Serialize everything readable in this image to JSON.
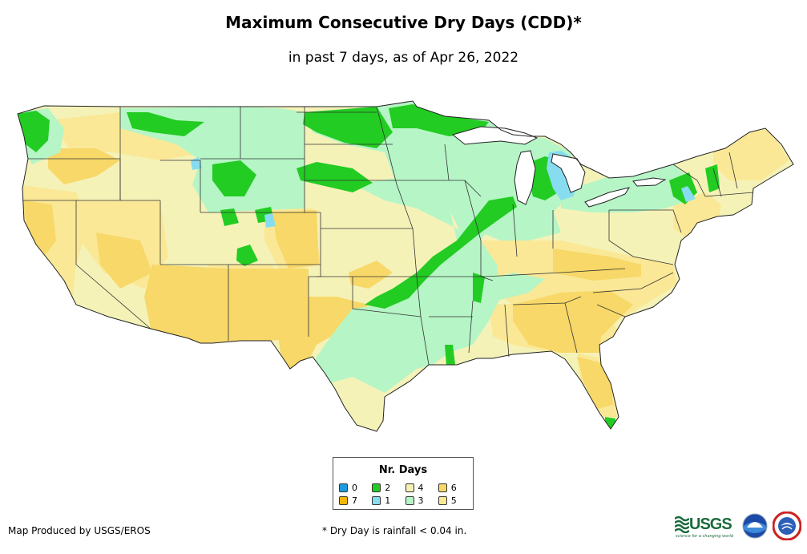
{
  "title": "Maximum Consecutive Dry Days (CDD)*",
  "subtitle": "in past 7 days, as of Apr 26, 2022",
  "legend": {
    "title": "Nr. Days",
    "items": [
      {
        "label": "0",
        "color": "#1e9be0"
      },
      {
        "label": "2",
        "color": "#22cc22"
      },
      {
        "label": "4",
        "color": "#f5f2b8"
      },
      {
        "label": "6",
        "color": "#f7d868"
      },
      {
        "label": "7",
        "color": "#f5b800"
      },
      {
        "label": "1",
        "color": "#88dcf0"
      },
      {
        "label": "3",
        "color": "#b6f5c6"
      },
      {
        "label": "5",
        "color": "#fae896"
      }
    ]
  },
  "credit": "Map Produced by USGS/EROS",
  "footnote": "* Dry Day is rainfall < 0.04 in.",
  "logos": {
    "usgs": "USGS",
    "usgs_tagline": "science for a changing world",
    "noaa": "NOAA",
    "nws": "National Weather Service"
  },
  "colors": {
    "background": "#ffffff",
    "border": "#222222"
  }
}
